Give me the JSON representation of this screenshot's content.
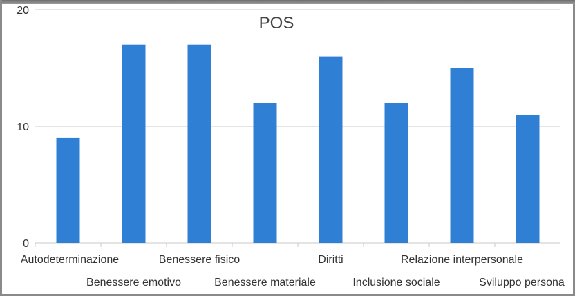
{
  "chart_data": {
    "type": "bar",
    "title": "POS",
    "categories": [
      "Autodeterminazione",
      "Benessere emotivo",
      "Benessere fisico",
      "Benessere materiale",
      "Diritti",
      "Inclusione sociale",
      "Relazione interpersonale",
      "Sviluppo persona"
    ],
    "values": [
      9,
      17,
      17,
      12,
      16,
      12,
      15,
      11
    ],
    "ylim": [
      0,
      20
    ],
    "yticks": [
      "0",
      "10",
      "20"
    ],
    "grid": true,
    "bar_color": "#2f7fd4",
    "grid_color": "#c8c8c8"
  }
}
